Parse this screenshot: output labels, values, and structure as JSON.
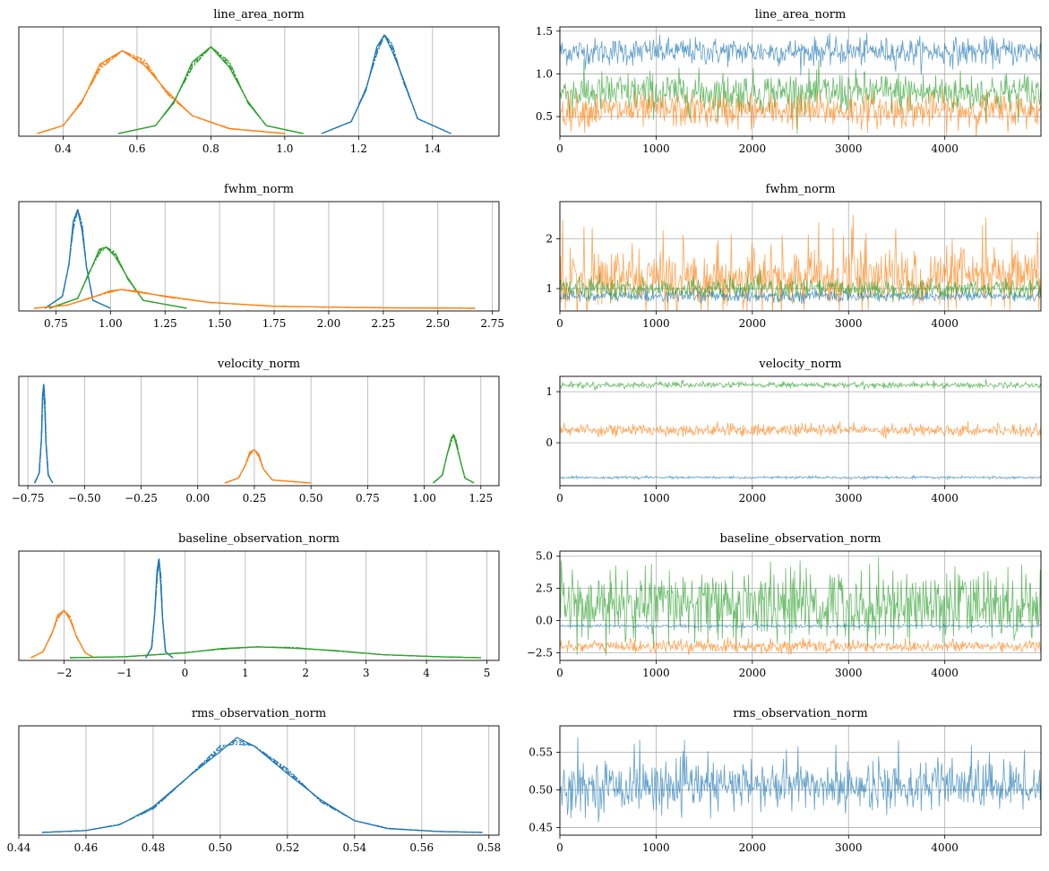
{
  "colors": {
    "blue": "#1f77b4",
    "orange": "#ff7f0e",
    "green": "#2ca02c",
    "grid": "#b0b0b0"
  },
  "chart_data": [
    {
      "type": "line",
      "title": "line_area_norm",
      "xlim": [
        0.28,
        1.58
      ],
      "xticks": [
        0.4,
        0.6,
        0.8,
        1.0,
        1.2,
        1.4
      ],
      "xtick_labels": [
        "0.4",
        "0.6",
        "0.8",
        "1.0",
        "1.2",
        "1.4"
      ],
      "grid": "x",
      "series": [
        {
          "color": "blue",
          "values_x": [
            1.1,
            1.18,
            1.22,
            1.25,
            1.27,
            1.29,
            1.32,
            1.36,
            1.45
          ],
          "values_y": [
            0.0,
            0.12,
            0.45,
            0.85,
            1.0,
            0.88,
            0.55,
            0.15,
            0.0
          ]
        },
        {
          "color": "orange",
          "values_x": [
            0.33,
            0.4,
            0.45,
            0.5,
            0.56,
            0.62,
            0.68,
            0.75,
            0.85,
            1.0
          ],
          "values_y": [
            0.0,
            0.08,
            0.32,
            0.68,
            0.84,
            0.72,
            0.42,
            0.18,
            0.05,
            0.0
          ]
        },
        {
          "color": "green",
          "values_x": [
            0.55,
            0.65,
            0.7,
            0.75,
            0.8,
            0.85,
            0.9,
            0.95,
            1.05
          ],
          "values_y": [
            0.0,
            0.08,
            0.32,
            0.7,
            0.88,
            0.7,
            0.32,
            0.08,
            0.0
          ]
        }
      ]
    },
    {
      "type": "line",
      "title": "line_area_norm",
      "xlim": [
        0,
        4999
      ],
      "ylim": [
        0.27,
        1.55
      ],
      "xticks": [
        0,
        1000,
        2000,
        3000,
        4000
      ],
      "xtick_labels": [
        "0",
        "1000",
        "2000",
        "3000",
        "4000"
      ],
      "yticks": [
        0.5,
        1.0,
        1.5
      ],
      "ytick_labels": [
        "0.5",
        "1.0",
        "1.5"
      ],
      "grid": "both",
      "series": [
        {
          "color": "blue",
          "mean": 1.26,
          "spread": 0.08
        },
        {
          "color": "green",
          "mean": 0.78,
          "spread": 0.12
        },
        {
          "color": "orange",
          "mean": 0.57,
          "spread": 0.1
        }
      ]
    },
    {
      "type": "line",
      "title": "fwhm_norm",
      "xlim": [
        0.58,
        2.78
      ],
      "xticks": [
        0.75,
        1.0,
        1.25,
        1.5,
        1.75,
        2.0,
        2.25,
        2.5,
        2.75
      ],
      "xtick_labels": [
        "0.75",
        "1.00",
        "1.25",
        "1.50",
        "1.75",
        "2.00",
        "2.25",
        "2.50",
        "2.75"
      ],
      "grid": "x",
      "series": [
        {
          "color": "blue",
          "values_x": [
            0.7,
            0.78,
            0.81,
            0.83,
            0.85,
            0.87,
            0.89,
            0.92,
            1.0
          ],
          "values_y": [
            0.0,
            0.12,
            0.45,
            0.85,
            1.0,
            0.82,
            0.42,
            0.08,
            0.0
          ]
        },
        {
          "color": "green",
          "values_x": [
            0.72,
            0.85,
            0.9,
            0.95,
            0.98,
            1.02,
            1.08,
            1.15,
            1.35
          ],
          "values_y": [
            0.0,
            0.1,
            0.35,
            0.58,
            0.62,
            0.55,
            0.3,
            0.08,
            0.0
          ]
        },
        {
          "color": "orange",
          "values_x": [
            0.65,
            0.8,
            0.9,
            1.0,
            1.05,
            1.12,
            1.25,
            1.45,
            1.75,
            2.2,
            2.67
          ],
          "values_y": [
            0.0,
            0.03,
            0.1,
            0.17,
            0.19,
            0.17,
            0.12,
            0.06,
            0.02,
            0.005,
            0.0
          ]
        }
      ]
    },
    {
      "type": "line",
      "title": "fwhm_norm",
      "xlim": [
        0,
        4999
      ],
      "ylim": [
        0.55,
        2.75
      ],
      "xticks": [
        0,
        1000,
        2000,
        3000,
        4000
      ],
      "xtick_labels": [
        "0",
        "1000",
        "2000",
        "3000",
        "4000"
      ],
      "yticks": [
        1,
        2
      ],
      "ytick_labels": [
        "1",
        "2"
      ],
      "grid": "both",
      "series": [
        {
          "color": "orange",
          "mean": 1.2,
          "spread": 0.3,
          "spikes": 2.6
        },
        {
          "color": "blue",
          "mean": 0.85,
          "spread": 0.06
        },
        {
          "color": "green",
          "mean": 1.0,
          "spread": 0.1
        }
      ]
    },
    {
      "type": "line",
      "title": "velocity_norm",
      "xlim": [
        -0.79,
        1.33
      ],
      "xticks": [
        -0.75,
        -0.5,
        -0.25,
        0.0,
        0.25,
        0.5,
        0.75,
        1.0,
        1.25
      ],
      "xtick_labels": [
        "−0.75",
        "−0.50",
        "−0.25",
        "0.00",
        "0.25",
        "0.50",
        "0.75",
        "1.00",
        "1.25"
      ],
      "grid": "x",
      "series": [
        {
          "color": "blue",
          "values_x": [
            -0.72,
            -0.7,
            -0.69,
            -0.685,
            -0.68,
            -0.675,
            -0.67,
            -0.66,
            -0.64
          ],
          "values_y": [
            0.0,
            0.1,
            0.45,
            0.85,
            1.0,
            0.8,
            0.42,
            0.08,
            0.0
          ]
        },
        {
          "color": "orange",
          "values_x": [
            0.12,
            0.18,
            0.21,
            0.23,
            0.25,
            0.27,
            0.29,
            0.33,
            0.5
          ],
          "values_y": [
            0.0,
            0.05,
            0.18,
            0.3,
            0.34,
            0.28,
            0.14,
            0.03,
            0.0
          ]
        },
        {
          "color": "green",
          "values_x": [
            1.04,
            1.08,
            1.1,
            1.12,
            1.13,
            1.14,
            1.16,
            1.18,
            1.22
          ],
          "values_y": [
            0.0,
            0.08,
            0.28,
            0.44,
            0.49,
            0.42,
            0.22,
            0.05,
            0.0
          ]
        }
      ]
    },
    {
      "type": "line",
      "title": "velocity_norm",
      "xlim": [
        0,
        4999
      ],
      "ylim": [
        -0.84,
        1.3
      ],
      "xticks": [
        0,
        1000,
        2000,
        3000,
        4000
      ],
      "xtick_labels": [
        "0",
        "1000",
        "2000",
        "3000",
        "4000"
      ],
      "yticks": [
        0,
        1
      ],
      "ytick_labels": [
        "0",
        "1"
      ],
      "grid": "both",
      "series": [
        {
          "color": "green",
          "mean": 1.13,
          "spread": 0.03
        },
        {
          "color": "orange",
          "mean": 0.25,
          "spread": 0.06
        },
        {
          "color": "blue",
          "mean": -0.68,
          "spread": 0.012
        }
      ]
    },
    {
      "type": "line",
      "title": "baseline_observation_norm",
      "xlim": [
        -2.75,
        5.2
      ],
      "xticks": [
        -2,
        -1,
        0,
        1,
        2,
        3,
        4,
        5
      ],
      "xtick_labels": [
        "−2",
        "−1",
        "0",
        "1",
        "2",
        "3",
        "4",
        "5"
      ],
      "grid": "x",
      "series": [
        {
          "color": "orange",
          "values_x": [
            -2.55,
            -2.35,
            -2.2,
            -2.1,
            -2.0,
            -1.9,
            -1.8,
            -1.65,
            -1.5
          ],
          "values_y": [
            0.0,
            0.06,
            0.25,
            0.42,
            0.48,
            0.4,
            0.22,
            0.05,
            0.0
          ]
        },
        {
          "color": "blue",
          "values_x": [
            -0.65,
            -0.55,
            -0.5,
            -0.46,
            -0.43,
            -0.4,
            -0.37,
            -0.32,
            -0.2
          ],
          "values_y": [
            0.0,
            0.1,
            0.45,
            0.85,
            1.0,
            0.8,
            0.4,
            0.06,
            0.0
          ]
        },
        {
          "color": "green",
          "values_x": [
            -1.9,
            -1.0,
            0.0,
            0.6,
            1.2,
            1.8,
            2.5,
            3.3,
            4.2,
            4.9
          ],
          "values_y": [
            0.0,
            0.01,
            0.05,
            0.09,
            0.11,
            0.1,
            0.07,
            0.03,
            0.01,
            0.0
          ]
        }
      ]
    },
    {
      "type": "line",
      "title": "baseline_observation_norm",
      "xlim": [
        0,
        4999
      ],
      "ylim": [
        -3.1,
        5.4
      ],
      "xticks": [
        0,
        1000,
        2000,
        3000,
        4000
      ],
      "xtick_labels": [
        "0",
        "1000",
        "2000",
        "3000",
        "4000"
      ],
      "yticks": [
        -2.5,
        0.0,
        2.5,
        5.0
      ],
      "ytick_labels": [
        "−2.5",
        "0.0",
        "2.5",
        "5.0"
      ],
      "grid": "both",
      "series": [
        {
          "color": "green",
          "mean": 1.2,
          "spread": 1.4,
          "spikes": 5.0
        },
        {
          "color": "blue",
          "mean": -0.43,
          "spread": 0.05
        },
        {
          "color": "orange",
          "mean": -2.0,
          "spread": 0.25
        }
      ]
    },
    {
      "type": "line",
      "title": "rms_observation_norm",
      "xlim": [
        0.44,
        0.583
      ],
      "xticks": [
        0.44,
        0.46,
        0.48,
        0.5,
        0.52,
        0.54,
        0.56,
        0.58
      ],
      "xtick_labels": [
        "0.44",
        "0.46",
        "0.48",
        "0.50",
        "0.52",
        "0.54",
        "0.56",
        "0.58"
      ],
      "grid": "x",
      "series": [
        {
          "color": "blue",
          "values_x": [
            0.447,
            0.46,
            0.47,
            0.48,
            0.49,
            0.5,
            0.505,
            0.51,
            0.52,
            0.53,
            0.54,
            0.55,
            0.565,
            0.578
          ],
          "values_y": [
            0.0,
            0.02,
            0.08,
            0.25,
            0.55,
            0.85,
            0.93,
            0.88,
            0.62,
            0.32,
            0.12,
            0.04,
            0.01,
            0.0
          ]
        }
      ]
    },
    {
      "type": "line",
      "title": "rms_observation_norm",
      "xlim": [
        0,
        4999
      ],
      "ylim": [
        0.44,
        0.585
      ],
      "xticks": [
        0,
        1000,
        2000,
        3000,
        4000
      ],
      "xtick_labels": [
        "0",
        "1000",
        "2000",
        "3000",
        "4000"
      ],
      "yticks": [
        0.45,
        0.5,
        0.55
      ],
      "ytick_labels": [
        "0.45",
        "0.50",
        "0.55"
      ],
      "grid": "both",
      "series": [
        {
          "color": "blue",
          "mean": 0.505,
          "spread": 0.016,
          "spikes": 0.57
        }
      ]
    }
  ]
}
